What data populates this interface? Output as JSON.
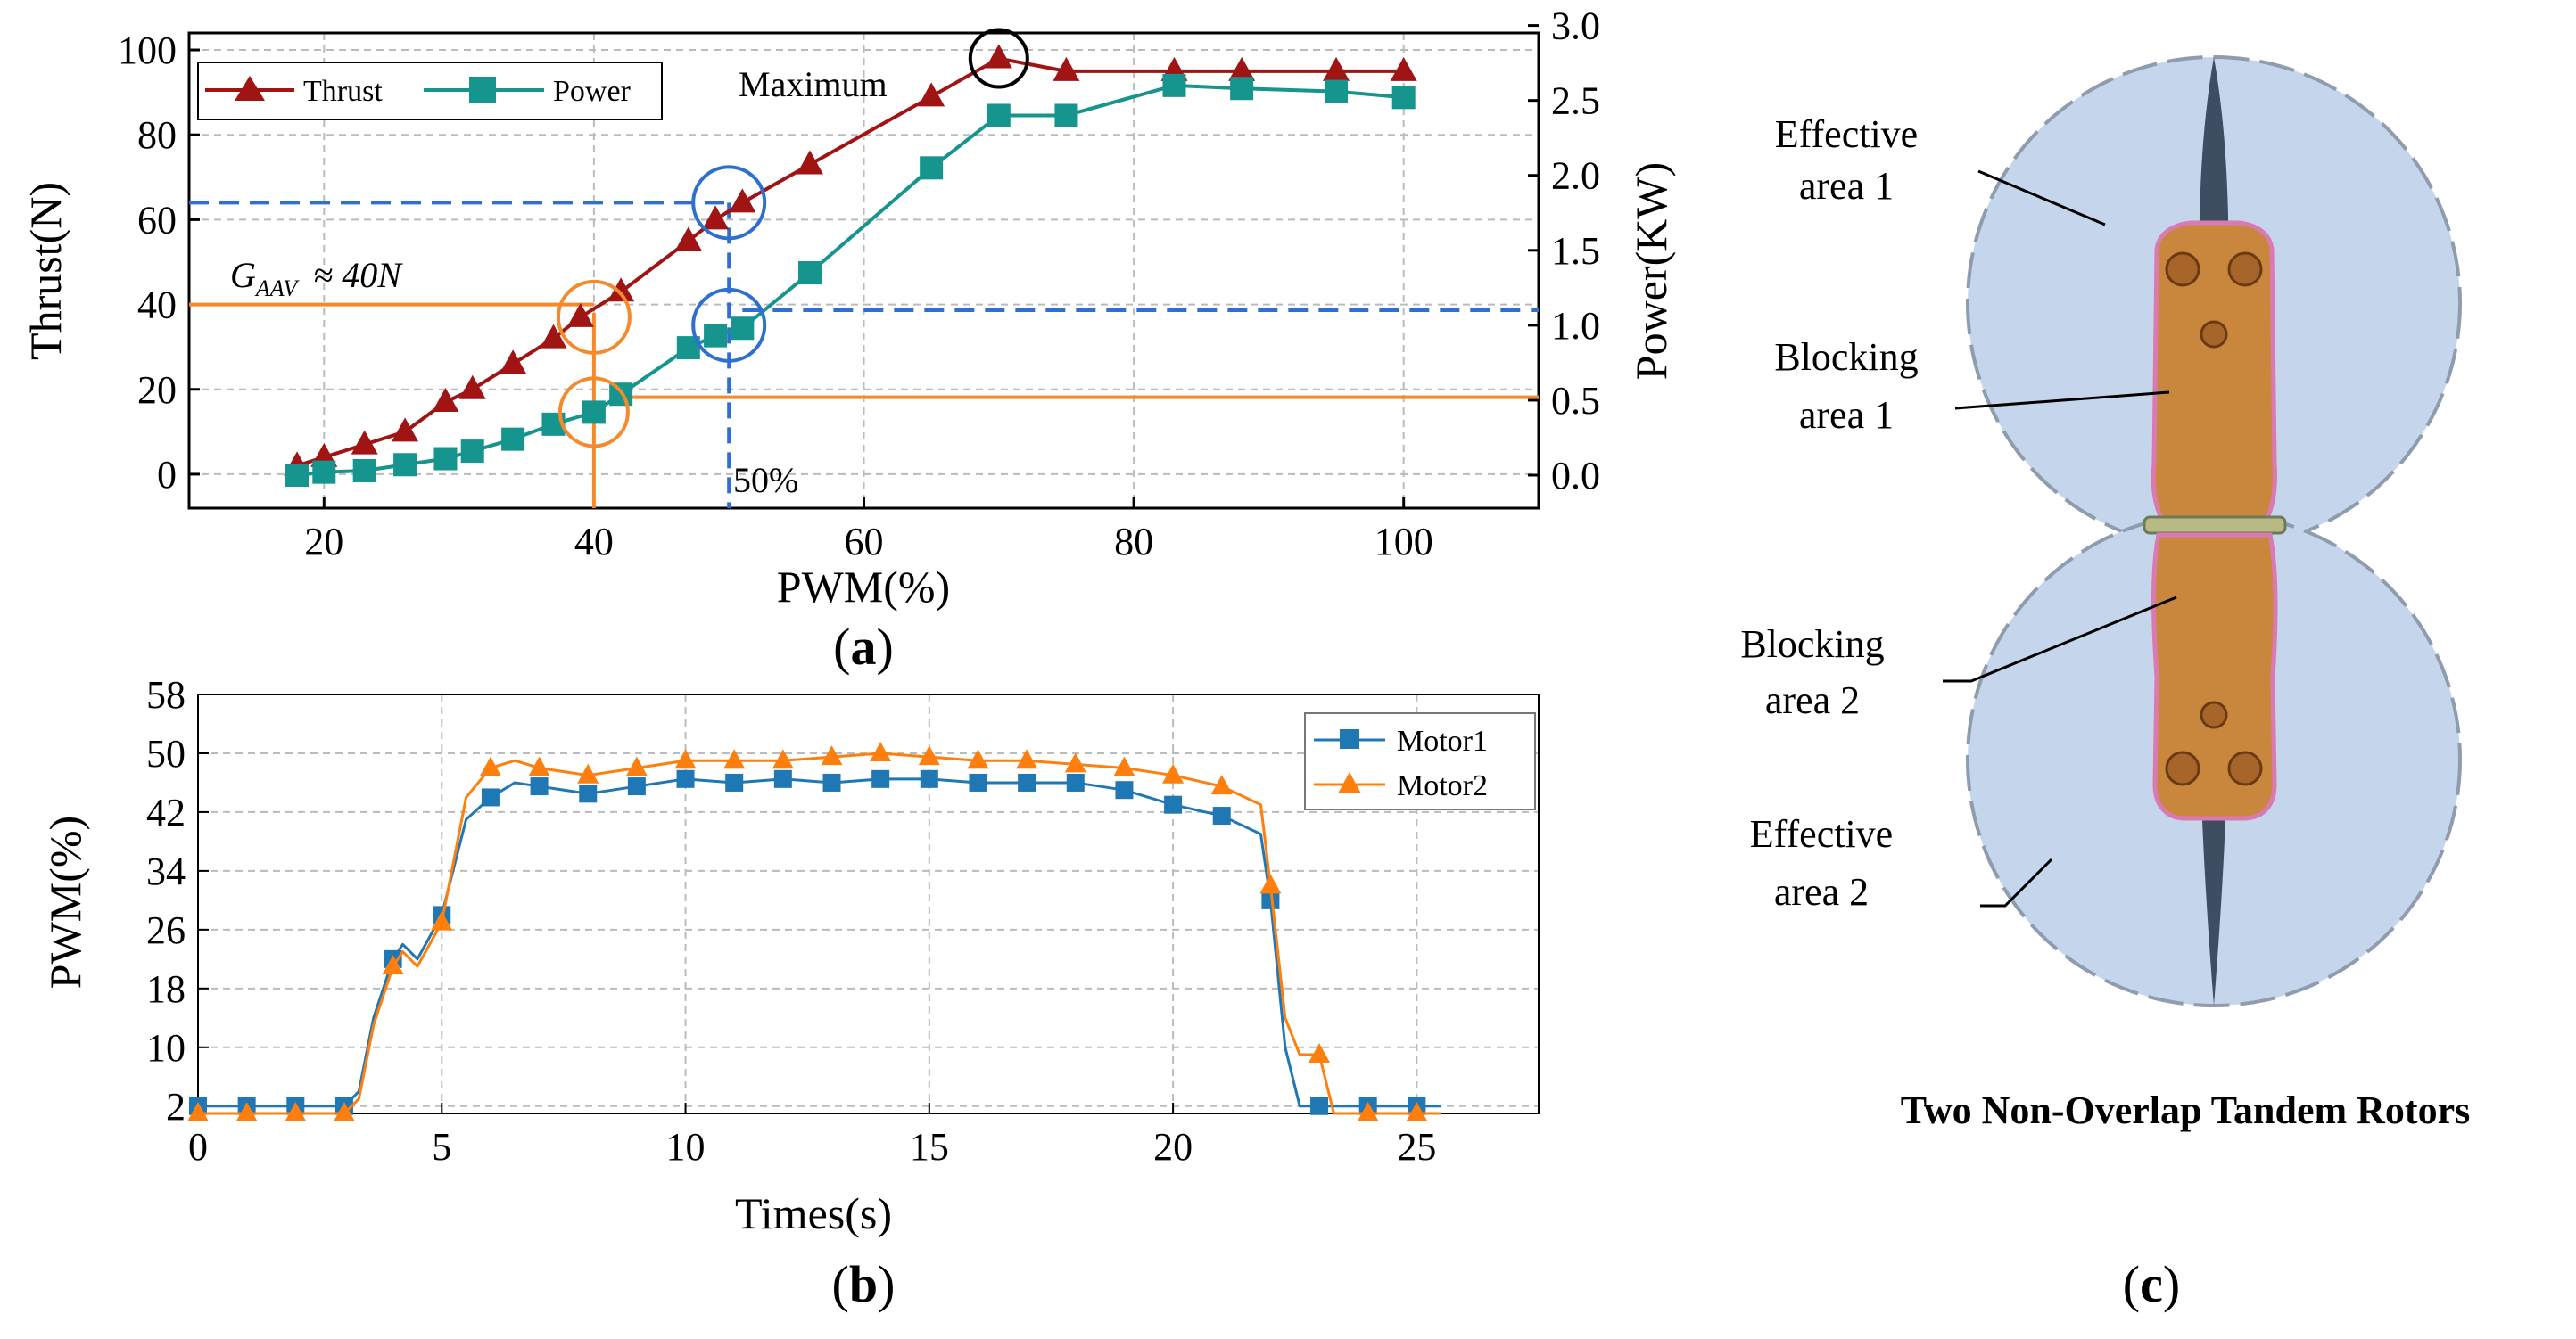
{
  "colors": {
    "thrust": "#a01414",
    "power": "#16948e",
    "motor1": "#1f77b4",
    "motor2": "#ff7f0e",
    "blue_guide": "#2e6fd0",
    "orange_guide": "#f58a2c",
    "rotor_disk": "#c5d6ec",
    "body": "#c8873c"
  },
  "chart_data": [
    {
      "id": "a",
      "type": "line",
      "title": "",
      "subfigure_label": "(a)",
      "xlabel": "PWM(%)",
      "ylabel": "Thrust(N)",
      "y2label": "Power(KW)",
      "xlim": [
        10,
        110
      ],
      "ylim": [
        -8,
        104
      ],
      "y2lim": [
        -0.22,
        2.95
      ],
      "xticks": [
        "20",
        "40",
        "60",
        "80",
        "100"
      ],
      "yticks": [
        "0",
        "20",
        "40",
        "60",
        "80",
        "100"
      ],
      "y2ticks": [
        "0.0",
        "0.5",
        "1.0",
        "1.5",
        "2.0",
        "2.5",
        "3.0"
      ],
      "grid": true,
      "legend": "top-left",
      "series": [
        {
          "name": "Thrust",
          "axis": "left",
          "marker": "triangle",
          "x": [
            18,
            20,
            23,
            26,
            29,
            31,
            34,
            37,
            39,
            42,
            47,
            49,
            51,
            56,
            65,
            70,
            75,
            83,
            88,
            95,
            100
          ],
          "y": [
            2,
            4,
            7,
            10,
            17,
            20,
            26,
            32,
            37,
            43,
            55,
            60,
            64,
            73,
            89,
            98,
            95,
            95,
            95,
            95,
            95
          ]
        },
        {
          "name": "Power",
          "axis": "right",
          "marker": "square",
          "x": [
            18,
            20,
            23,
            26,
            29,
            31,
            34,
            37,
            40,
            42,
            47,
            49,
            51,
            56,
            65,
            70,
            75,
            83,
            88,
            95,
            100
          ],
          "y": [
            0.0,
            0.02,
            0.03,
            0.07,
            0.11,
            0.16,
            0.24,
            0.34,
            0.42,
            0.54,
            0.85,
            0.93,
            0.98,
            1.35,
            2.05,
            2.4,
            2.4,
            2.6,
            2.58,
            2.56,
            2.52
          ]
        }
      ],
      "annotations": {
        "maximum": "Maximum",
        "gaav_main": "G",
        "gaav_sub": "AAV",
        "gaav_rest": "≈ 40N",
        "pwm50": "50%"
      }
    },
    {
      "id": "b",
      "type": "line",
      "title": "",
      "subfigure_label": "(b)",
      "xlabel": "Times(s)",
      "ylabel": "PWM(%)",
      "xlim": [
        0,
        27.5
      ],
      "ylim": [
        1,
        58
      ],
      "xticks": [
        "0",
        "5",
        "10",
        "15",
        "20",
        "25"
      ],
      "yticks": [
        "2",
        "10",
        "18",
        "26",
        "34",
        "42",
        "50",
        "58"
      ],
      "grid": true,
      "legend": "top-right",
      "series": [
        {
          "name": "Motor1",
          "marker": "square",
          "x": [
            0,
            3.0,
            3.3,
            3.6,
            4.0,
            4.2,
            4.5,
            5.0,
            5.5,
            6.0,
            6.5,
            7,
            8,
            9,
            10,
            11,
            12,
            13,
            14,
            15,
            16,
            17,
            18,
            19,
            20,
            21,
            21.8,
            22.0,
            22.3,
            22.6,
            23,
            24,
            25,
            25.5
          ],
          "y": [
            2,
            2,
            4,
            14,
            22,
            24,
            22,
            28,
            41,
            44,
            46,
            45.5,
            44.5,
            45.5,
            46.5,
            46,
            46.5,
            46,
            46.5,
            46.5,
            46,
            46,
            46,
            45,
            43,
            41.5,
            39,
            30,
            10,
            2,
            2,
            2,
            2,
            2
          ]
        },
        {
          "name": "Motor2",
          "marker": "triangle",
          "x": [
            0,
            3.0,
            3.3,
            3.6,
            4.0,
            4.2,
            4.5,
            5.0,
            5.5,
            6.0,
            6.5,
            7,
            8,
            9,
            10,
            11,
            12,
            13,
            14,
            15,
            16,
            17,
            18,
            19,
            20,
            21,
            21.8,
            22.0,
            22.3,
            22.6,
            23.0,
            23.3,
            24,
            25,
            25.5
          ],
          "y": [
            1,
            1,
            3,
            13,
            21,
            23,
            21,
            27,
            44,
            48,
            49,
            48,
            47,
            48,
            49,
            49,
            49,
            49.5,
            50,
            49.5,
            49,
            49,
            48.5,
            48,
            47,
            45.5,
            43,
            32,
            14,
            9,
            9,
            1,
            1,
            1,
            1
          ]
        }
      ]
    }
  ],
  "panel_c": {
    "label": "(c)",
    "title": "Two Non-Overlap Tandem Rotors",
    "labels": {
      "effective1_l1": "Effective",
      "effective1_l2": "area 1",
      "blocking1_l1": "Blocking",
      "blocking1_l2": "area 1",
      "blocking2_l1": "Blocking",
      "blocking2_l2": "area 2",
      "effective2_l1": "Effective",
      "effective2_l2": "area 2"
    }
  }
}
